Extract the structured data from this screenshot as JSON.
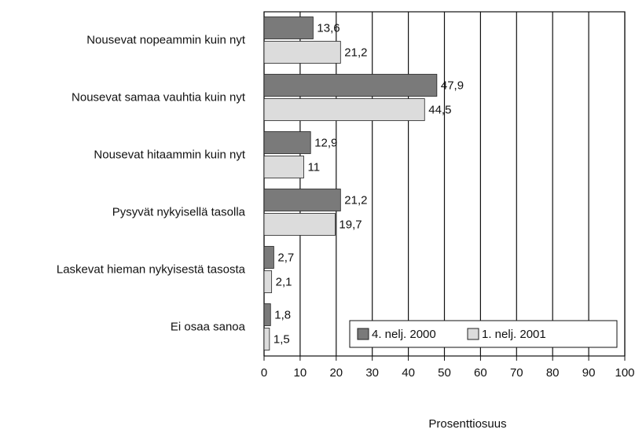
{
  "chart_data": {
    "type": "bar",
    "orientation": "horizontal",
    "categories": [
      "Nousevat nopeammin kuin nyt",
      "Nousevat samaa vauhtia kuin nyt",
      "Nousevat hitaammin kuin nyt",
      "Pysyvät nykyisellä tasolla",
      "Laskevat hieman nykyisestä tasosta",
      "Ei osaa sanoa"
    ],
    "series": [
      {
        "name": "4. nelj. 2000",
        "color": "#7a7a7a",
        "values": [
          13.6,
          47.9,
          12.9,
          21.2,
          2.7,
          1.8
        ],
        "value_labels": [
          "13,6",
          "47,9",
          "12,9",
          "21,2",
          "2,7",
          "1,8"
        ]
      },
      {
        "name": "1. nelj. 2001",
        "color": "#dcdcdc",
        "values": [
          21.2,
          44.5,
          11,
          19.7,
          2.1,
          1.5
        ],
        "value_labels": [
          "21,2",
          "44,5",
          "11",
          "19,7",
          "2,1",
          "1,5"
        ]
      }
    ],
    "xlabel": "Prosenttiosuus",
    "xlim": [
      0,
      100
    ],
    "xticks": [
      0,
      10,
      20,
      30,
      40,
      50,
      60,
      70,
      80,
      90,
      100
    ],
    "grid": true,
    "legend": "lower right"
  }
}
